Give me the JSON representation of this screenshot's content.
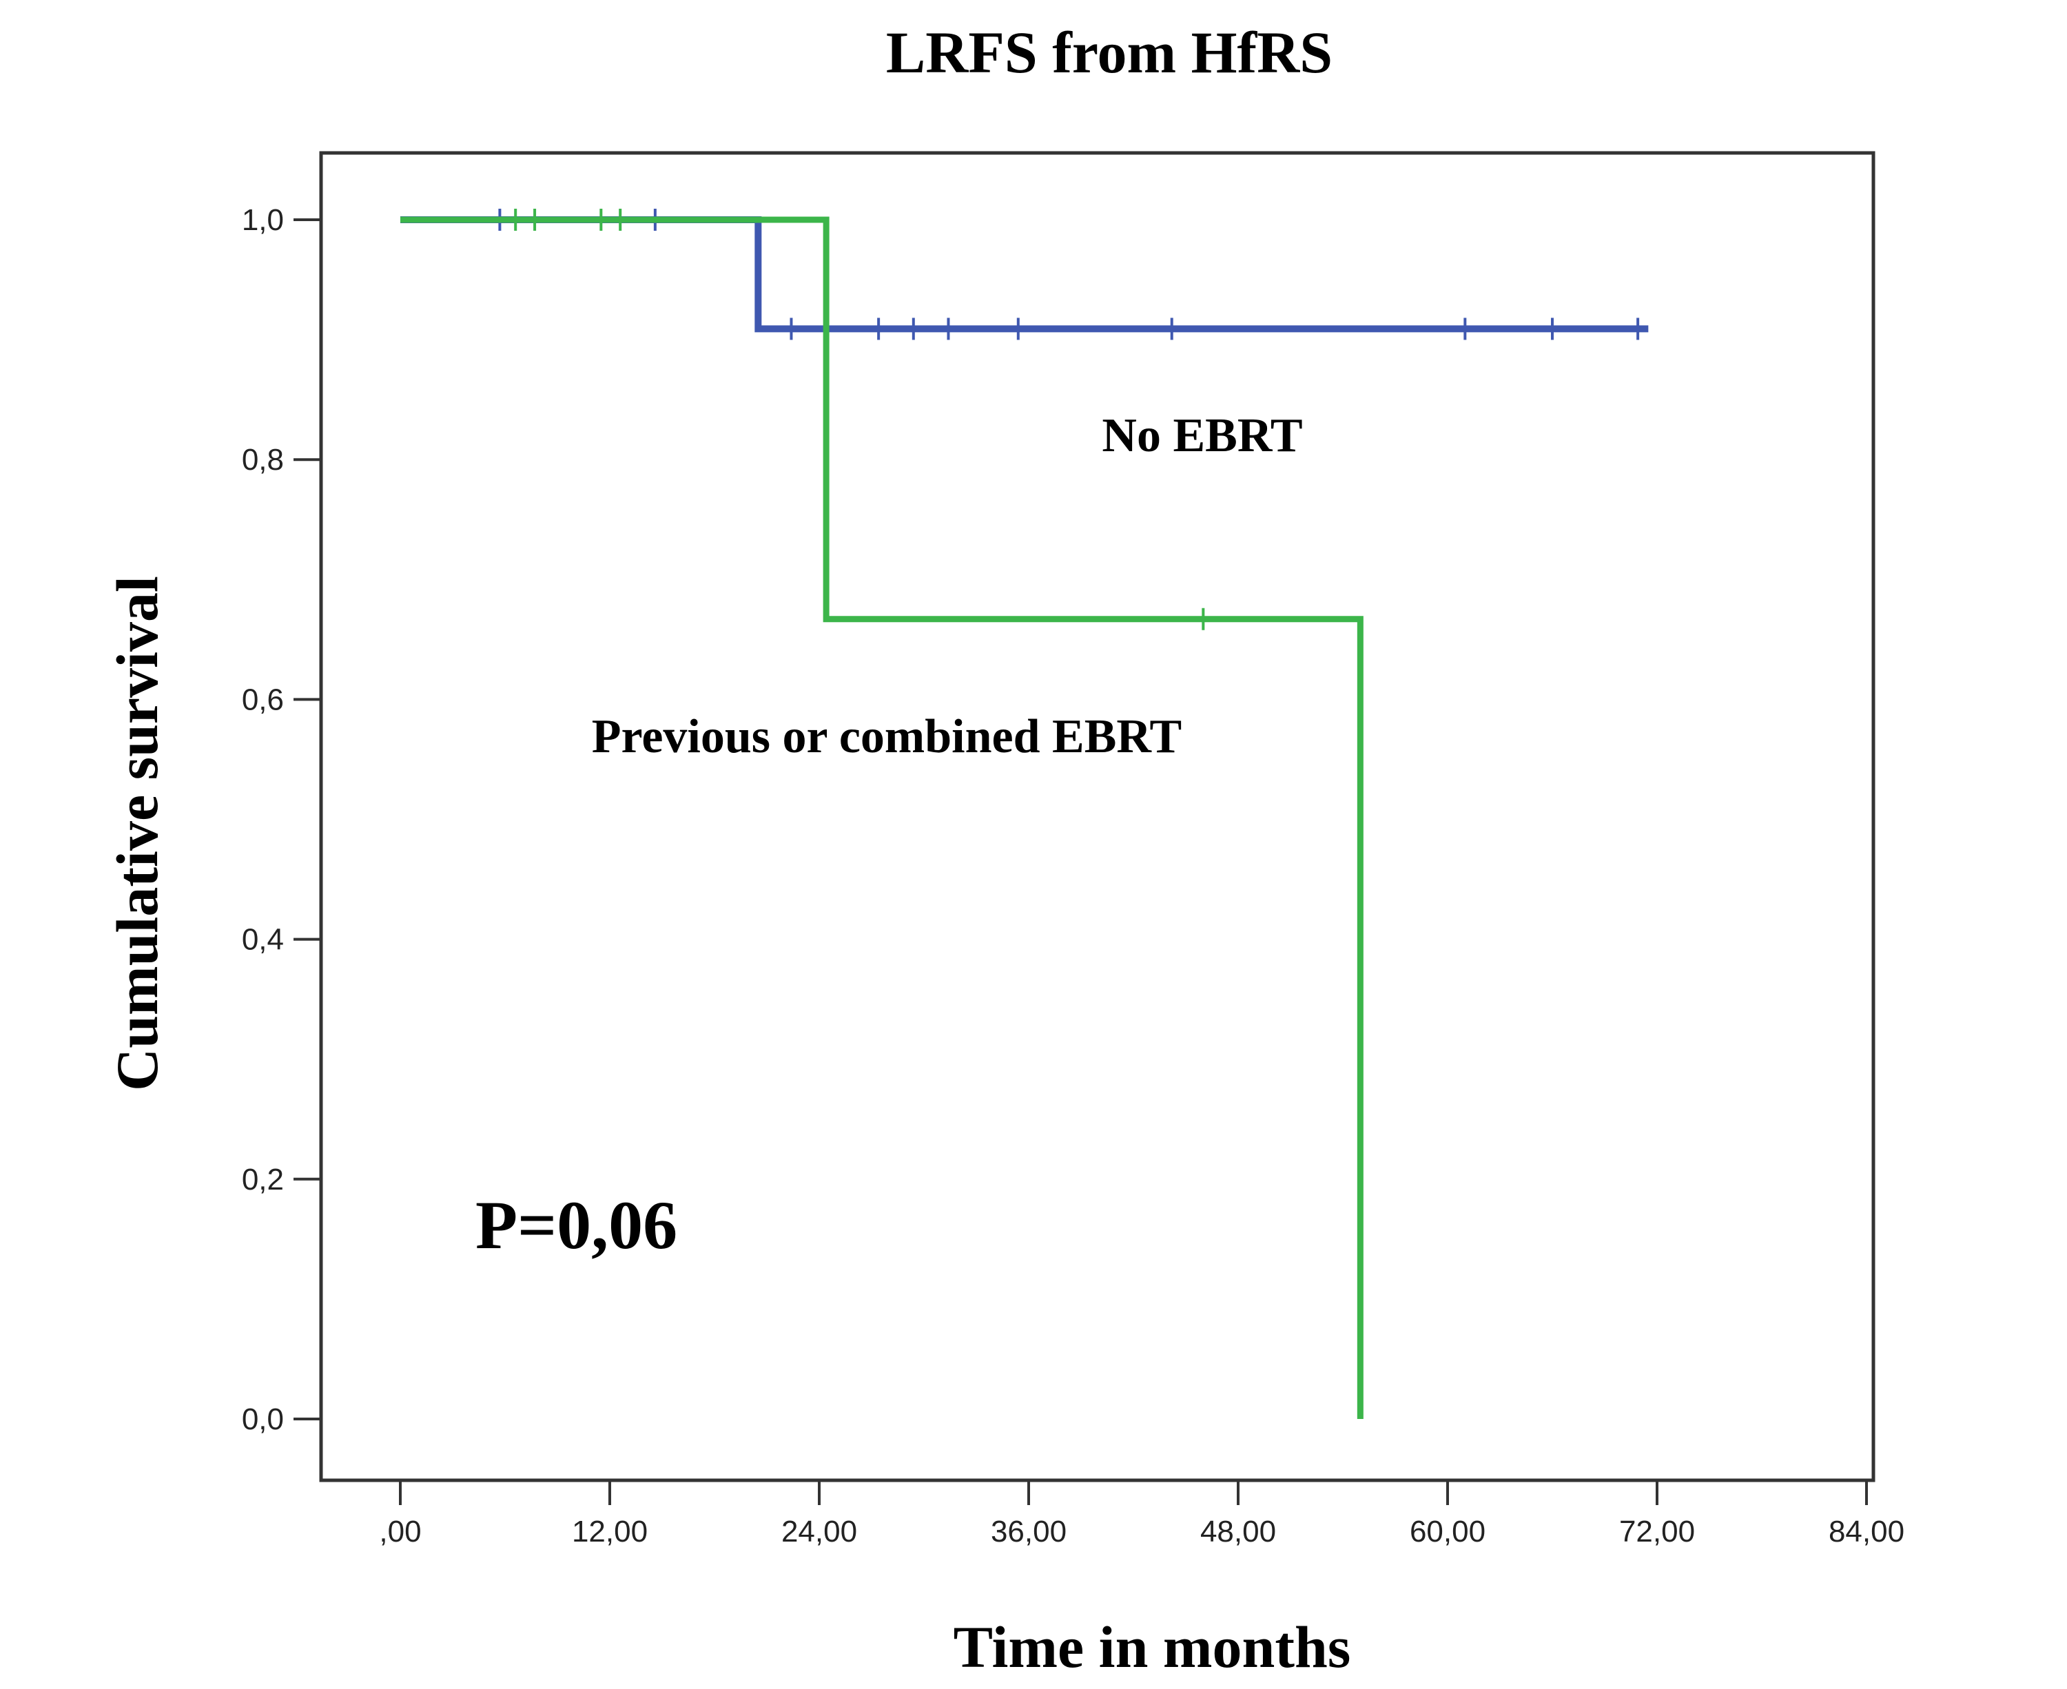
{
  "chart_data": {
    "type": "line",
    "subtype": "kaplan-meier",
    "title": "LRFS from HfRS",
    "xlabel": "Time in months",
    "ylabel": "Cumulative survival",
    "xlim": [
      0,
      84
    ],
    "ylim": [
      0,
      1
    ],
    "xticks": [
      0,
      12,
      24,
      36,
      48,
      60,
      72,
      84
    ],
    "xtick_labels": [
      ",00",
      "12,00",
      "24,00",
      "36,00",
      "48,00",
      "60,00",
      "72,00",
      "84,00"
    ],
    "yticks": [
      0,
      0.2,
      0.4,
      0.6,
      0.8,
      1.0
    ],
    "ytick_labels": [
      "0,0",
      "0,2",
      "0,4",
      "0,6",
      "0,8",
      "1,0"
    ],
    "grid": false,
    "series": [
      {
        "label_text": "No EBRT",
        "color": "#3f58b0",
        "steps": [
          [
            0,
            1.0
          ],
          [
            20.5,
            0.909
          ]
        ],
        "end_time": 71.5,
        "censored": [
          [
            5.7,
            1.0
          ],
          [
            14.6,
            1.0
          ],
          [
            22.4,
            0.909
          ],
          [
            27.4,
            0.909
          ],
          [
            29.4,
            0.909
          ],
          [
            31.4,
            0.909
          ],
          [
            35.4,
            0.909
          ],
          [
            44.2,
            0.909
          ],
          [
            61.0,
            0.909
          ],
          [
            66.0,
            0.909
          ],
          [
            70.9,
            0.909
          ]
        ]
      },
      {
        "label_text": "Previous or combined EBRT",
        "color": "#3cb54a",
        "steps": [
          [
            0,
            1.0
          ],
          [
            24.4,
            0.667
          ],
          [
            55.0,
            0.0
          ]
        ],
        "end_time": 55.0,
        "censored": [
          [
            6.6,
            1.0
          ],
          [
            7.7,
            1.0
          ],
          [
            11.5,
            1.0
          ],
          [
            12.6,
            1.0
          ],
          [
            46.0,
            0.667
          ]
        ]
      }
    ],
    "annotations": {
      "p_value": "P=0,06"
    }
  }
}
